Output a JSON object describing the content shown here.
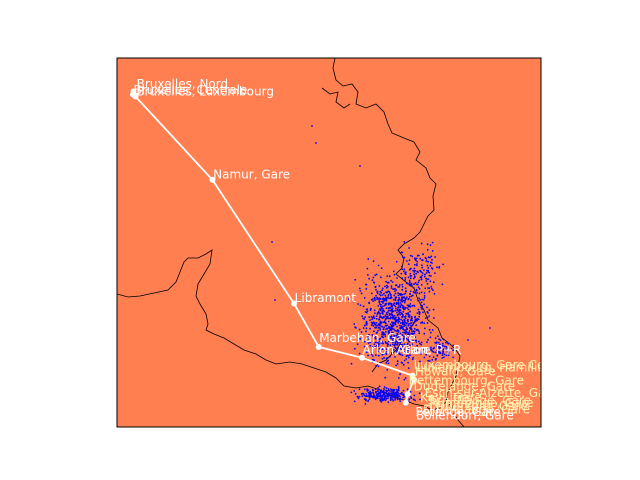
{
  "map": {
    "background_color": "#ff7f50",
    "border_color": "#000000",
    "route_color": "#ffffff",
    "density_color": "#0000ff",
    "faint_label_color": "#fff2b0"
  },
  "route": [
    {
      "name": "Bruxelles, Nord",
      "lon": 4.36,
      "lat": 50.86
    },
    {
      "name": "Bruxelles, Centrale",
      "lon": 4.357,
      "lat": 50.846
    },
    {
      "name": "Bruxelles, Luxembourg",
      "lon": 4.373,
      "lat": 50.838
    },
    {
      "name": "Namur, Gare",
      "lon": 4.862,
      "lat": 50.468
    },
    {
      "name": "Libramont",
      "lon": 5.38,
      "lat": 49.92
    },
    {
      "name": "Marbehan, Gare",
      "lon": 5.537,
      "lat": 49.727
    },
    {
      "name": "Arlon, Gare",
      "lon": 5.812,
      "lat": 49.679
    },
    {
      "name": "Luxembourg, Gare Centrale",
      "lon": 6.133,
      "lat": 49.6
    },
    {
      "name": "Howald, Gare",
      "lon": 6.142,
      "lat": 49.583
    },
    {
      "name": "Bettembourg, Gare",
      "lon": 6.102,
      "lat": 49.518
    },
    {
      "name": "Dudelange, Gare",
      "lon": 6.09,
      "lat": 49.48
    }
  ],
  "labels": [
    {
      "text": "Bruxelles, Nord",
      "lon": 4.38,
      "lat": 50.875,
      "style": "normal"
    },
    {
      "text": "Bruxelles, Centrale",
      "lon": 4.36,
      "lat": 50.848,
      "style": "normal"
    },
    {
      "text": "Bruxelles, Luxembourg",
      "lon": 4.378,
      "lat": 50.842,
      "style": "normal"
    },
    {
      "text": "Namur, Gare",
      "lon": 4.866,
      "lat": 50.475,
      "style": "normal"
    },
    {
      "text": "Libramont",
      "lon": 5.384,
      "lat": 49.926,
      "style": "normal"
    },
    {
      "text": "Marbehan, Gare",
      "lon": 5.54,
      "lat": 49.75,
      "style": "normal"
    },
    {
      "text": "Arlon, Gare",
      "lon": 5.816,
      "lat": 49.695,
      "style": "normal"
    },
    {
      "text": "Arlon, P+R",
      "lon": 6.032,
      "lat": 49.695,
      "style": "normal"
    },
    {
      "text": "Luxembourg, Gare Centrale",
      "lon": 6.14,
      "lat": 49.63,
      "style": "faint"
    },
    {
      "text": "Luxembourg, Hamilius",
      "lon": 6.16,
      "lat": 49.618,
      "style": "faint"
    },
    {
      "text": "Howald, Gare",
      "lon": 6.148,
      "lat": 49.6,
      "style": "faint"
    },
    {
      "text": "Bettembourg, Gare",
      "lon": 6.108,
      "lat": 49.56,
      "style": "faint"
    },
    {
      "text": "Dudelange, Gare",
      "lon": 6.14,
      "lat": 49.535,
      "style": "faint"
    },
    {
      "text": "Esch-sur-Alzette, Gare",
      "lon": 6.21,
      "lat": 49.505,
      "style": "faint"
    },
    {
      "text": "Kayl, Gare",
      "lon": 6.18,
      "lat": 49.485,
      "style": "faint"
    },
    {
      "text": "Schifflange, Gare",
      "lon": 6.23,
      "lat": 49.472,
      "style": "faint"
    },
    {
      "text": "Rumelange, Gare",
      "lon": 6.24,
      "lat": 49.46,
      "style": "faint"
    },
    {
      "text": "Oberkorn, Gare",
      "lon": 6.28,
      "lat": 49.448,
      "style": "faint"
    },
    {
      "text": "Differdange, Gare",
      "lon": 6.2,
      "lat": 49.432,
      "style": "faint"
    },
    {
      "text": "Pétange, Gare",
      "lon": 6.152,
      "lat": 49.422,
      "style": "normal"
    },
    {
      "text": "Bollendorf, Gare",
      "lon": 6.155,
      "lat": 49.405,
      "style": "normal"
    }
  ]
}
